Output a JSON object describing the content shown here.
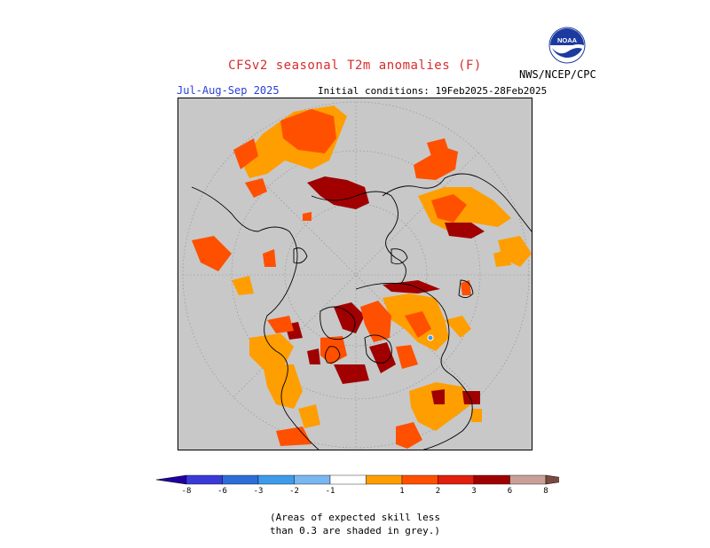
{
  "title": "CFSv2 seasonal T2m anomalies (F)",
  "season": "Jul-Aug-Sep 2025",
  "initial_conditions": "Initial conditions: 19Feb2025-28Feb2025",
  "agency": "NWS/NCEP/CPC",
  "logo_icon": "noaa-logo-icon",
  "colors": {
    "title": "#d92b2b",
    "season": "#2a3fd6",
    "skill_grey": "#c8c8c8",
    "coast": "#000000",
    "grid": "#8c8c8c"
  },
  "colorbar": {
    "bins": [
      {
        "label": "-8",
        "color": "#2200a0"
      },
      {
        "label": "-6",
        "color": "#3a3ad9"
      },
      {
        "label": "-3",
        "color": "#2c6ed6"
      },
      {
        "label": "-2",
        "color": "#3d9be9"
      },
      {
        "label": "-1",
        "color": "#7ab6f0"
      },
      {
        "label": "",
        "color": "#ffffff"
      },
      {
        "label": "1",
        "color": "#ff9e00"
      },
      {
        "label": "2",
        "color": "#ff5000"
      },
      {
        "label": "3",
        "color": "#e0200c"
      },
      {
        "label": "6",
        "color": "#a00000"
      },
      {
        "label": "8",
        "color": "#c8a098"
      },
      {
        "label": "",
        "color": "#7a4a40"
      }
    ]
  },
  "note_line1": "(Areas of expected skill less",
  "note_line2": "than 0.3 are shaded in grey.)"
}
